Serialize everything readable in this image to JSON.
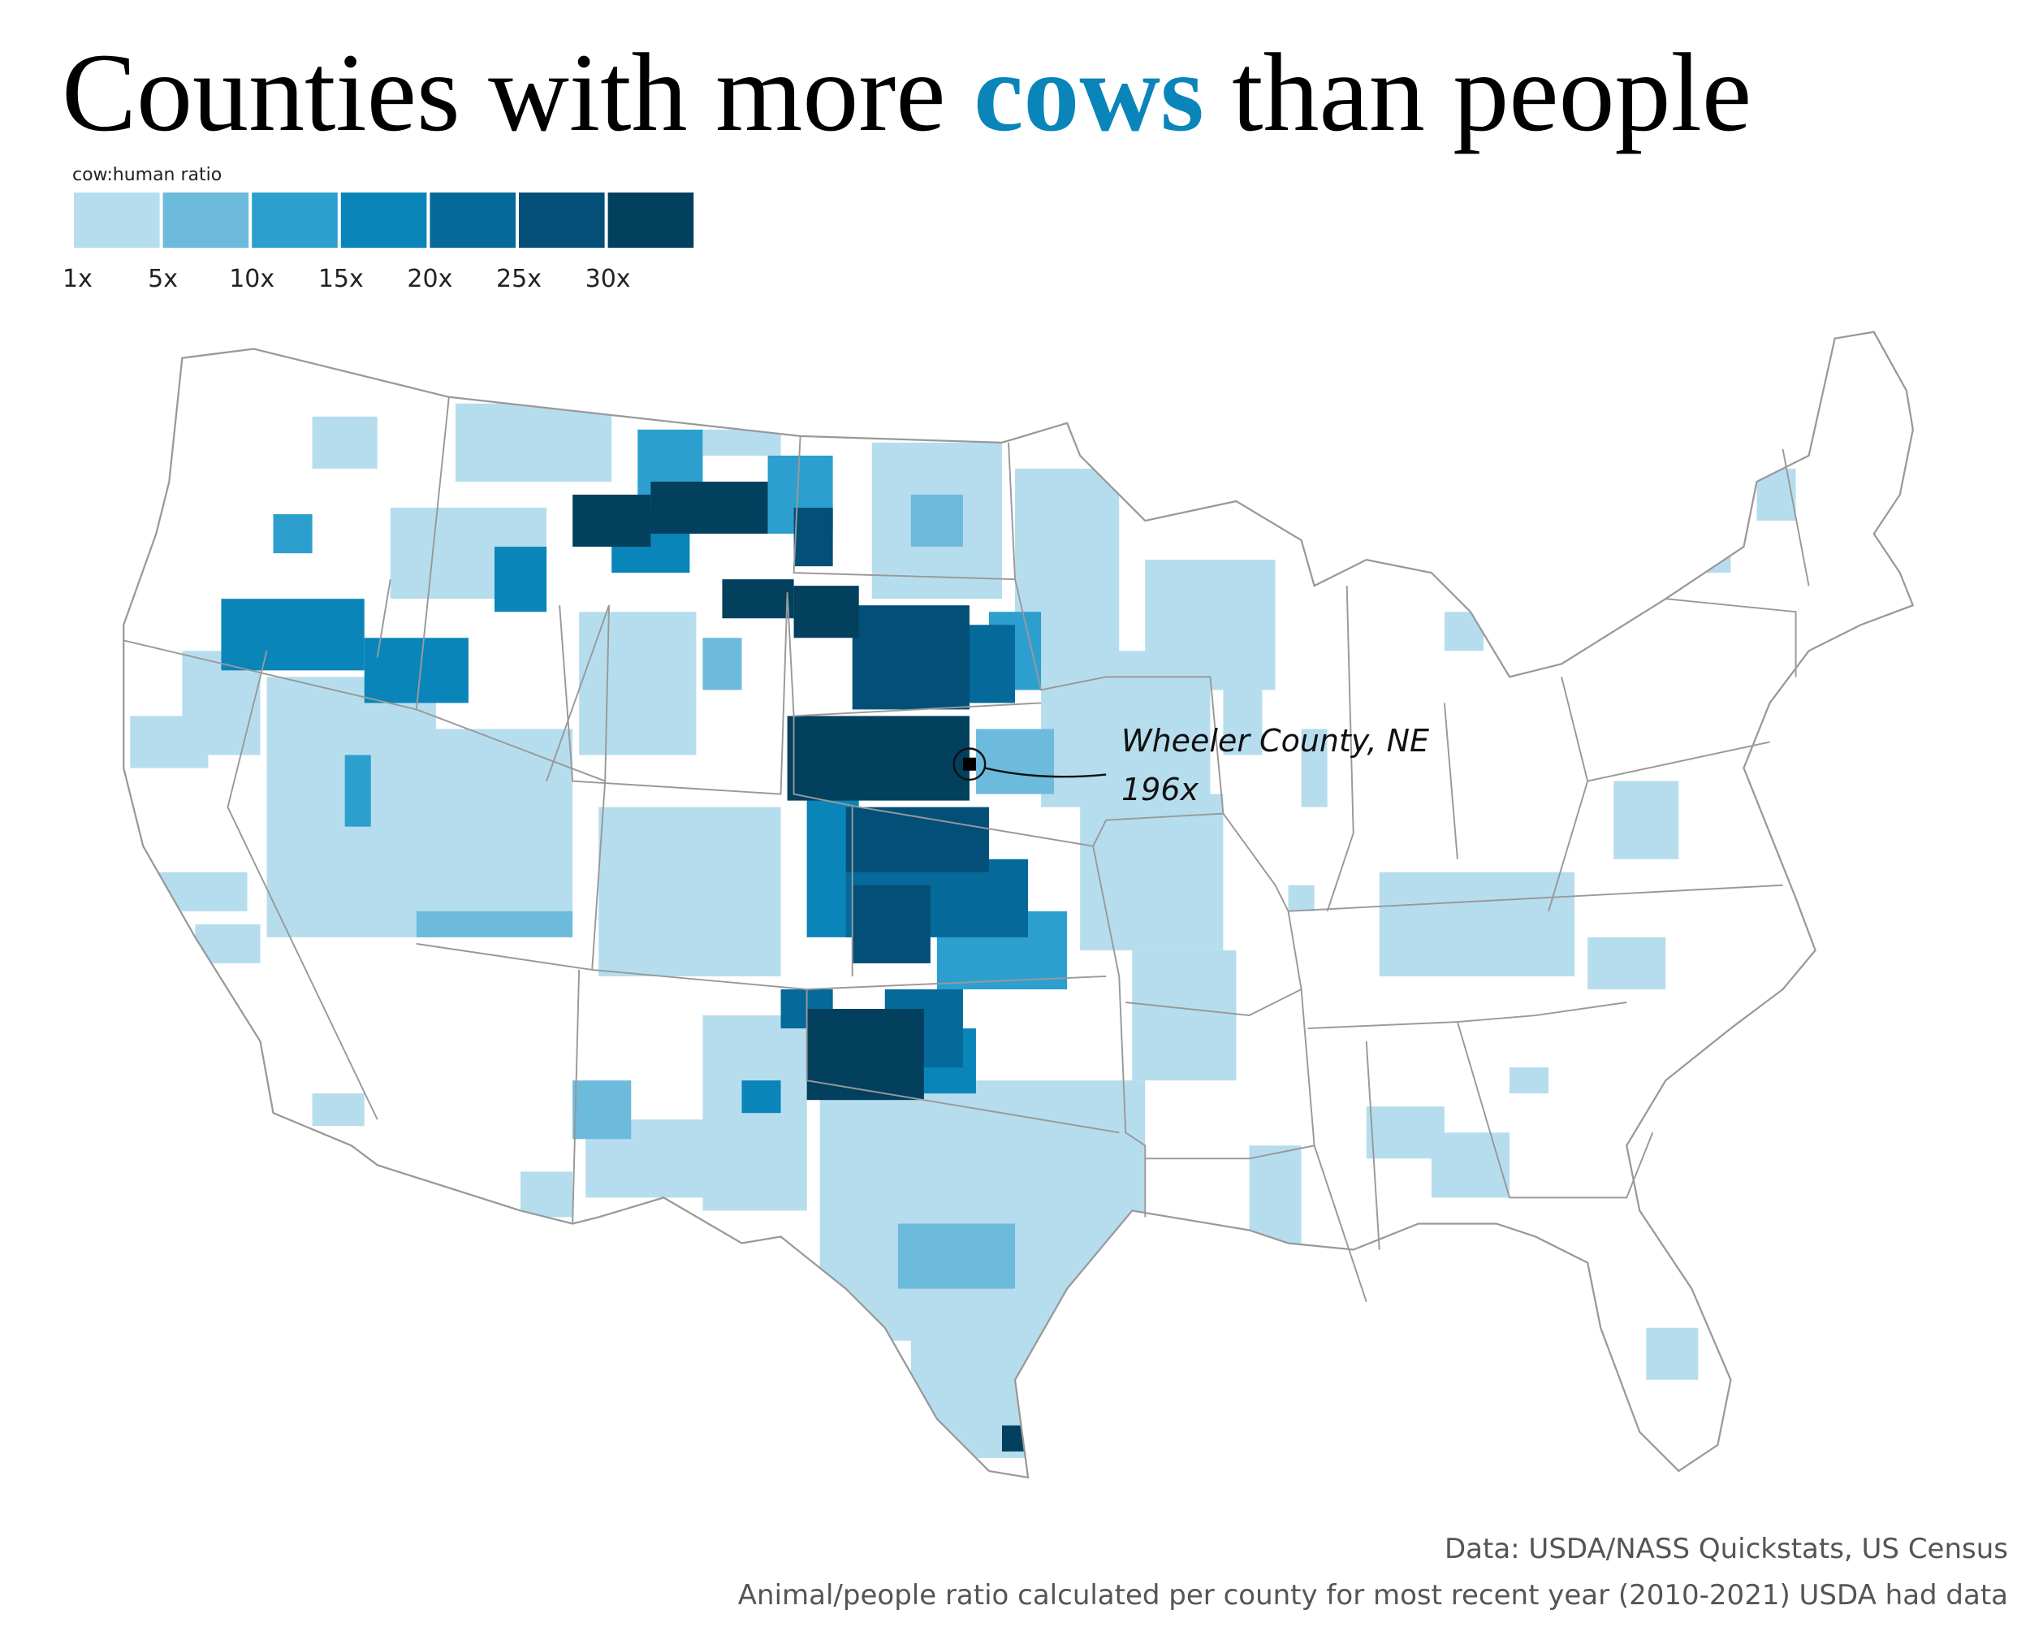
{
  "title": {
    "before": "Counties with more ",
    "highlight": "cows",
    "after": " than people",
    "highlight_color": "#0a85b9"
  },
  "legend": {
    "label": "cow:human ratio",
    "colors": [
      "#b6ddee",
      "#6dbbdc",
      "#2c9fcf",
      "#0a85b9",
      "#05699a",
      "#034f78",
      "#02405e"
    ],
    "ticks": [
      "1x",
      "5x",
      "10x",
      "15x",
      "20x",
      "25x",
      "30x"
    ]
  },
  "annotation": {
    "name": "Wheeler County, NE",
    "ratio": "196x"
  },
  "source": {
    "line1": "Data: USDA/NASS Quickstats, US Census",
    "line2": "Animal/people ratio calculated per county for most recent year (2010-2021) USDA had data"
  }
}
